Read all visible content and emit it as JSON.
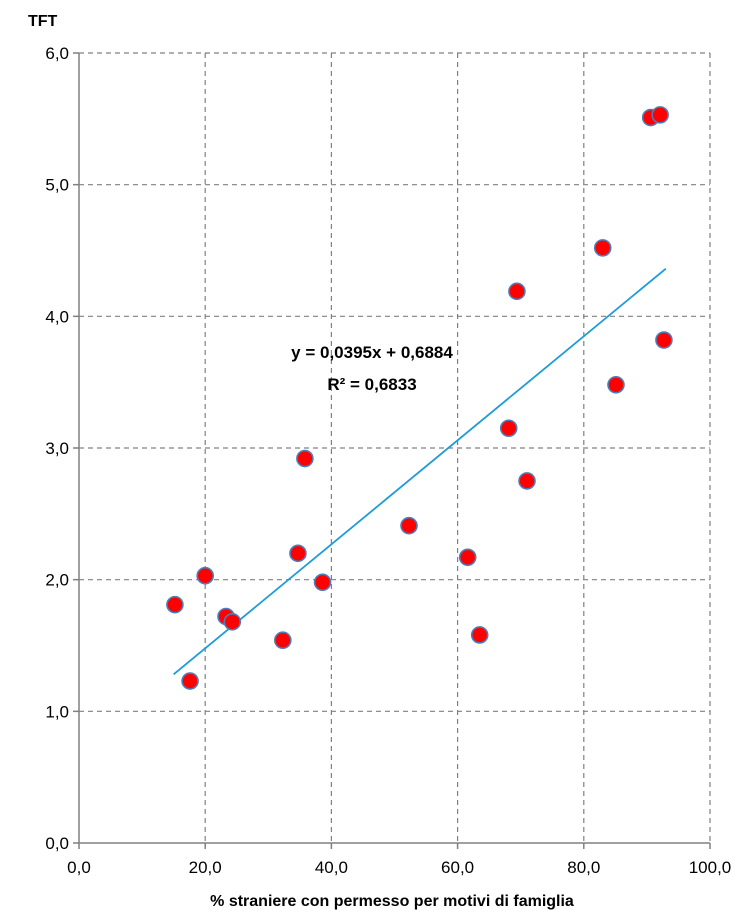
{
  "chart_data": {
    "type": "scatter",
    "ylabel": "TFT",
    "xlabel": "% straniere con permesso per motivi di famiglia",
    "xlim": [
      0,
      100
    ],
    "ylim": [
      0,
      6
    ],
    "x_ticks": [
      "0,0",
      "20,0",
      "40,0",
      "60,0",
      "80,0",
      "100,0"
    ],
    "y_ticks": [
      "0,0",
      "1,0",
      "2,0",
      "3,0",
      "4,0",
      "5,0",
      "6,0"
    ],
    "grid": true,
    "point_color": "#ff0000",
    "point_edge_color": "#4a7ebb",
    "trendline_color": "#1f9bd7",
    "trendline": {
      "equation": "y = 0,0395x + 0,6884",
      "r_squared": "R² = 0,6833",
      "slope": 0.0395,
      "intercept": 0.6884,
      "x_range": [
        15,
        93
      ]
    },
    "points": [
      {
        "x": 15.2,
        "y": 1.81
      },
      {
        "x": 17.6,
        "y": 1.23
      },
      {
        "x": 20.0,
        "y": 2.03
      },
      {
        "x": 23.3,
        "y": 1.72
      },
      {
        "x": 24.3,
        "y": 1.68
      },
      {
        "x": 32.3,
        "y": 1.54
      },
      {
        "x": 34.7,
        "y": 2.2
      },
      {
        "x": 35.8,
        "y": 2.92
      },
      {
        "x": 38.6,
        "y": 1.98
      },
      {
        "x": 52.3,
        "y": 2.41
      },
      {
        "x": 61.6,
        "y": 2.17
      },
      {
        "x": 63.5,
        "y": 1.58
      },
      {
        "x": 68.1,
        "y": 3.15
      },
      {
        "x": 69.4,
        "y": 4.19
      },
      {
        "x": 71.0,
        "y": 2.75
      },
      {
        "x": 83.0,
        "y": 4.52
      },
      {
        "x": 85.1,
        "y": 3.48
      },
      {
        "x": 90.6,
        "y": 5.51
      },
      {
        "x": 92.1,
        "y": 5.53
      },
      {
        "x": 92.7,
        "y": 3.82
      }
    ]
  }
}
